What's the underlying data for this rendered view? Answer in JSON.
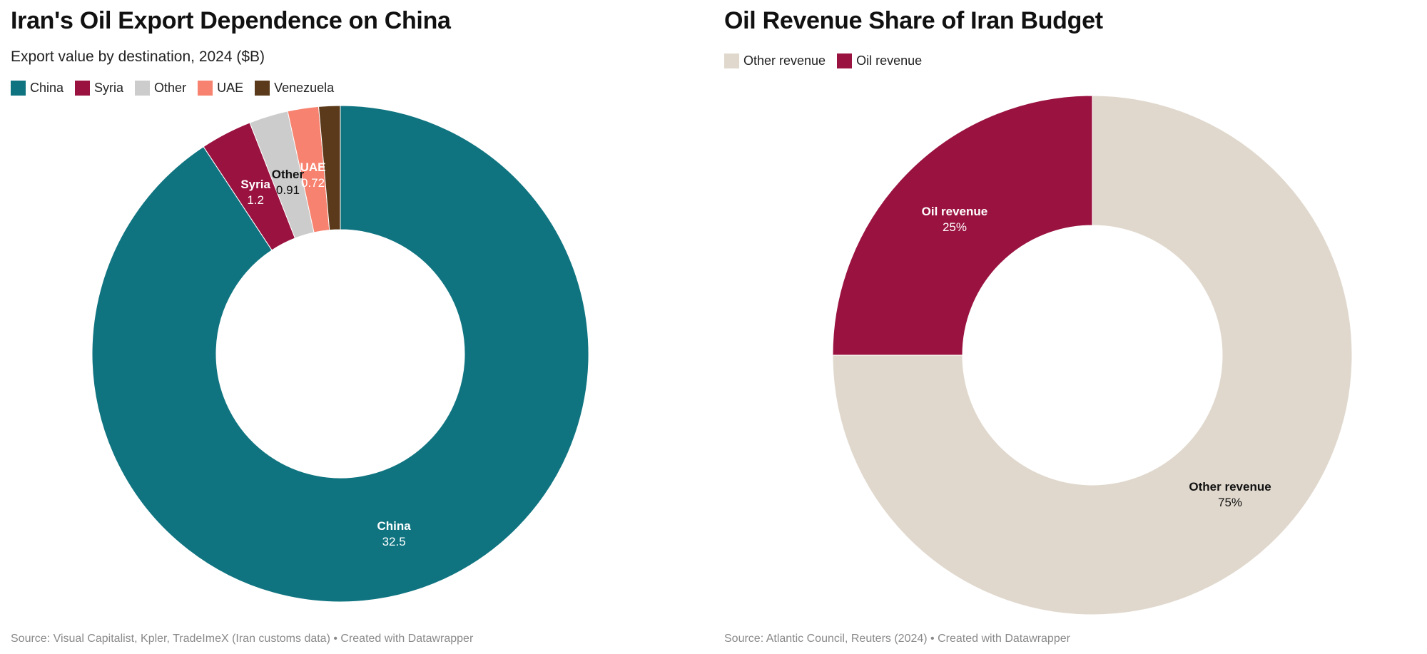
{
  "left": {
    "title": "Iran's Oil Export Dependence on China",
    "subtitle": "Export value by destination, 2024 ($B)",
    "source": "Source: Visual Capitalist, Kpler, TradeImeX (Iran customs data) • Created with Datawrapper"
  },
  "right": {
    "title": "Oil Revenue Share of Iran Budget",
    "source": "Source: Atlantic Council, Reuters (2024) • Created with Datawrapper"
  },
  "chart_data": [
    {
      "type": "pie",
      "variant": "donut",
      "title": "Iran's Oil Export Dependence on China",
      "subtitle": "Export value by destination, 2024 ($B)",
      "legend_position": "top-left",
      "categories": [
        "China",
        "Syria",
        "Other",
        "UAE",
        "Venezuela"
      ],
      "values": [
        32.5,
        1.2,
        0.91,
        0.72,
        0.5
      ],
      "value_labels": [
        "32.5",
        "1.2",
        "0.91",
        "0.72",
        ""
      ],
      "colors": [
        "#0f7480",
        "#9a1240",
        "#cccccc",
        "#f6826f",
        "#5a3a1a"
      ],
      "label_colors": [
        "#ffffff",
        "#ffffff",
        "#111111",
        "#ffffff",
        "#ffffff"
      ]
    },
    {
      "type": "pie",
      "variant": "donut",
      "title": "Oil Revenue Share of Iran Budget",
      "legend_position": "top-left",
      "categories": [
        "Other revenue",
        "Oil revenue"
      ],
      "values": [
        75,
        25
      ],
      "value_labels": [
        "75%",
        "25%"
      ],
      "colors": [
        "#e0d8cd",
        "#9a1240"
      ],
      "label_colors": [
        "#111111",
        "#ffffff"
      ]
    }
  ]
}
